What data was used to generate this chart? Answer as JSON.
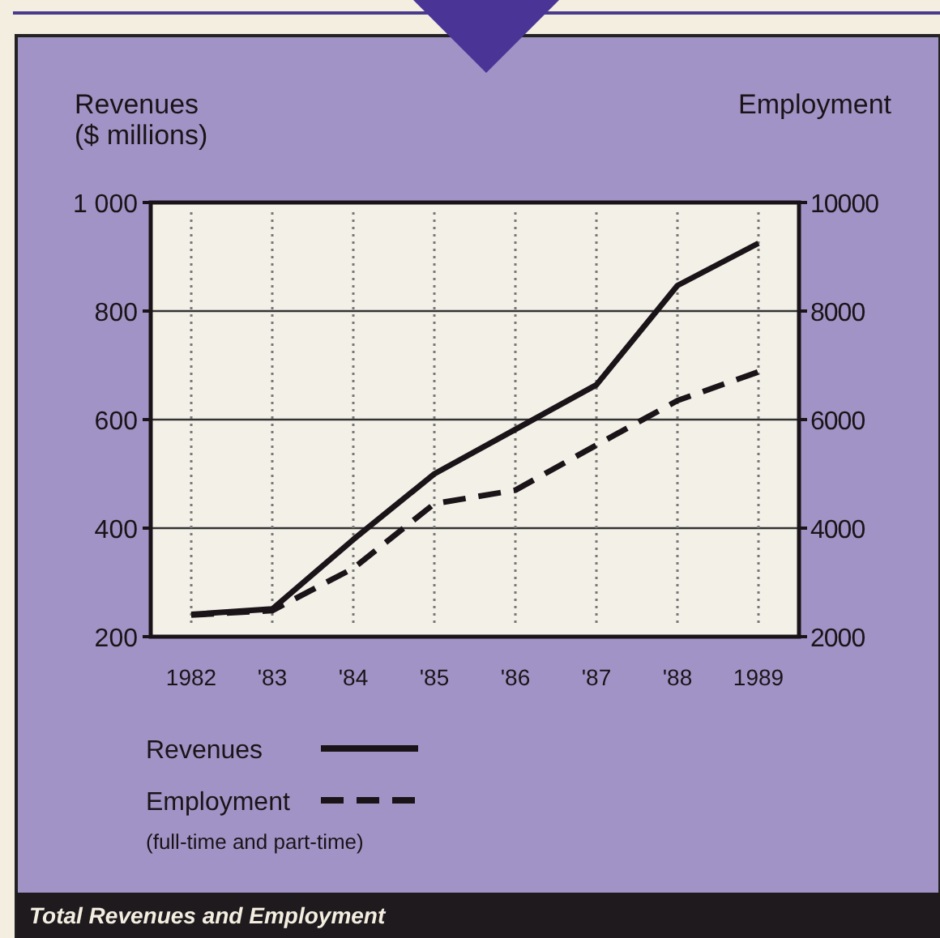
{
  "chart_data": {
    "type": "line",
    "title": "Total Revenues and Employment",
    "ylabel": "Revenues\n($ millions)",
    "y2label": "Employment",
    "categories": [
      "1982",
      "'83",
      "'84",
      "'85",
      "'86",
      "'87",
      "'88",
      "1989"
    ],
    "series": [
      {
        "name": "Revenues",
        "color": "#1a1418",
        "line_style": "solid",
        "values": [
          241,
          251,
          379,
          500,
          582,
          664,
          847,
          925
        ]
      },
      {
        "name": "Employment",
        "color": "#1a1418",
        "line_style": "dashed",
        "axis": "y2",
        "values": [
          2400,
          2480,
          3260,
          4450,
          4700,
          5530,
          6350,
          6880
        ]
      }
    ],
    "ylim": [
      200,
      1000
    ],
    "yticks": [
      200,
      400,
      600,
      800,
      {
        "value": 1000,
        "label": "1 000"
      }
    ],
    "y2lim": [
      2000,
      10000
    ],
    "y2ticks": [
      {
        "value": 2000,
        "label": "2000"
      },
      {
        "value": 4000,
        "label": "4000"
      },
      {
        "value": 6000,
        "label": "6000"
      },
      {
        "value": 8000,
        "label": "8000"
      },
      {
        "value": 10000,
        "label": "10000"
      }
    ],
    "grid": true,
    "legend": "bottom left",
    "marker": "none",
    "annotations": [
      "(full-time and part-time)"
    ]
  }
}
